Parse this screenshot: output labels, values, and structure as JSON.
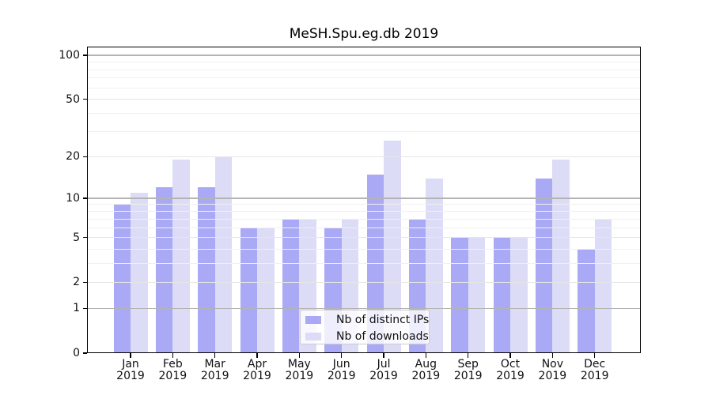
{
  "title": "MeSH.Spu.eg.db 2019",
  "colors": {
    "distinct_ips": "#a9a9f5",
    "downloads": "#dcdcf7",
    "grid_major": "#b4b4b4",
    "grid_tick": "#e6e6e6",
    "grid_minor": "#f0f0f0"
  },
  "legend": {
    "items": [
      {
        "label": "Nb of distinct IPs",
        "color": "#a9a9f5"
      },
      {
        "label": "Nb of downloads",
        "color": "#dcdcf7"
      }
    ]
  },
  "x_axis": {
    "months": [
      "Jan",
      "Feb",
      "Mar",
      "Apr",
      "May",
      "Jun",
      "Jul",
      "Aug",
      "Sep",
      "Oct",
      "Nov",
      "Dec"
    ],
    "year": "2019"
  },
  "y_axis": {
    "tick_labels": [
      "100",
      "50",
      "20",
      "10",
      "5",
      "2",
      "1",
      "0"
    ]
  },
  "chart_data": {
    "type": "bar",
    "title": "MeSH.Spu.eg.db 2019",
    "categories": [
      "Jan 2019",
      "Feb 2019",
      "Mar 2019",
      "Apr 2019",
      "May 2019",
      "Jun 2019",
      "Jul 2019",
      "Aug 2019",
      "Sep 2019",
      "Oct 2019",
      "Nov 2019",
      "Dec 2019"
    ],
    "series": [
      {
        "name": "Nb of distinct IPs",
        "color": "#a9a9f5",
        "values": [
          9,
          12,
          12,
          6,
          7,
          6,
          15,
          7,
          5,
          5,
          14,
          4
        ]
      },
      {
        "name": "Nb of downloads",
        "color": "#dcdcf7",
        "values": [
          11,
          19,
          20,
          6,
          7,
          7,
          26,
          14,
          5,
          5,
          19,
          7
        ]
      }
    ],
    "xlabel": "",
    "ylabel": "",
    "yscale": "log1p",
    "ylim": [
      0,
      115
    ],
    "y_ticks": [
      0,
      1,
      2,
      5,
      10,
      20,
      50,
      100
    ],
    "y_major_gridlines": [
      1,
      10,
      100
    ],
    "y_tick_gridlines": [
      2,
      5,
      20,
      50
    ],
    "y_minor_gridlines": [
      3,
      4,
      6,
      7,
      8,
      9,
      30,
      40,
      60,
      70,
      80,
      90
    ],
    "grid": true,
    "legend_position": "lower center"
  }
}
